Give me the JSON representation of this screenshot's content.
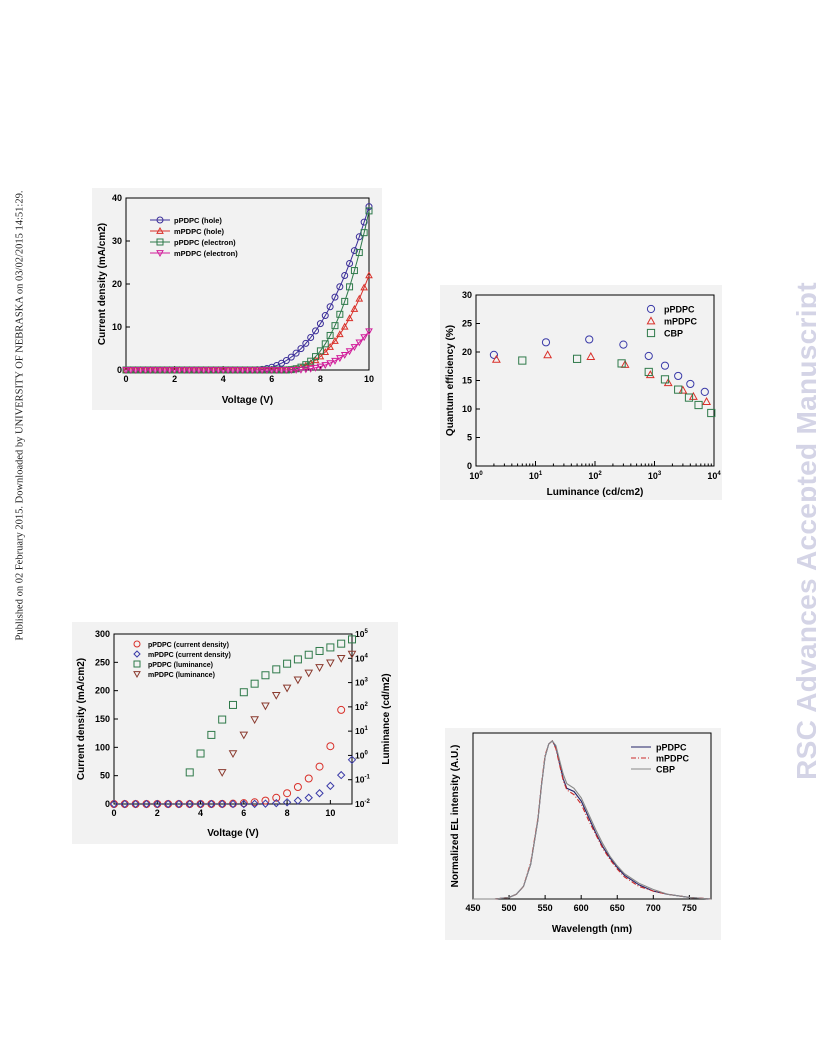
{
  "side_note": "Published on 02 February 2015. Downloaded by UNIVERSITY OF NEBRASKA on 03/02/2015 14:51:29.",
  "watermark": "RSC Advances Accepted Manuscript",
  "colors": {
    "pPDPC_hole": "#3b2e99",
    "mPDPC_hole": "#d9302a",
    "pPDPC_electron": "#2e7a4a",
    "mPDPC_electron": "#d11c9a",
    "eqe_pPDPC": "#3a3aa8",
    "eqe_mPDPC": "#d9302a",
    "eqe_CBP": "#2f7a4a",
    "el_pPDPC": "#222266",
    "el_mPDPC": "#cc2a2a",
    "el_CBP": "#888888"
  },
  "chart_data": [
    {
      "id": "jv_devices",
      "type": "line",
      "title": "",
      "xlabel": "Voltage (V)",
      "ylabel": "Current density (mA/cm2)",
      "xlim": [
        0,
        10
      ],
      "ylim": [
        0,
        40
      ],
      "xticks": [
        "0",
        "2",
        "4",
        "6",
        "8",
        "10"
      ],
      "yticks": [
        "0",
        "10",
        "20",
        "30",
        "40"
      ],
      "legend_position": "top-left",
      "series": [
        {
          "name": "pPDPC  (hole)",
          "marker": "circle",
          "color_key": "pPDPC_hole",
          "onset": 5.1,
          "scale": 38,
          "exp": 2.4
        },
        {
          "name": "mPDPC  (hole)",
          "marker": "triangle-up",
          "color_key": "mPDPC_hole",
          "onset": 6.4,
          "scale": 22,
          "exp": 2.4
        },
        {
          "name": "pPDPC  (electron)",
          "marker": "square",
          "color_key": "pPDPC_electron",
          "onset": 6.5,
          "scale": 37,
          "exp": 2.5
        },
        {
          "name": "mPDPC  (electron)",
          "marker": "triangle-down",
          "color_key": "mPDPC_electron",
          "onset": 6.7,
          "scale": 9,
          "exp": 2.6
        }
      ],
      "x_range_note": "curves sampled from 0 to 10 V",
      "y_max_shown": [
        38,
        22,
        37,
        9
      ]
    },
    {
      "id": "eqe_luminance",
      "type": "scatter",
      "title": "",
      "xlabel": "Luminance (cd/cm2)",
      "ylabel": "Quantum efficiency (%)",
      "xscale": "log",
      "xlim": [
        1,
        10000
      ],
      "ylim": [
        0,
        30
      ],
      "yticks": [
        "0",
        "5",
        "10",
        "15",
        "20",
        "25",
        "30"
      ],
      "legend_position": "top-right",
      "series": [
        {
          "name": "pPDPC",
          "marker": "circle",
          "color_key": "eqe_pPDPC",
          "x": [
            2,
            15,
            80,
            300,
            800,
            1500,
            2500,
            4000,
            7000
          ],
          "y": [
            19.5,
            21.7,
            22.2,
            21.3,
            19.3,
            17.6,
            15.8,
            14.4,
            13.0
          ]
        },
        {
          "name": "mPDPC",
          "marker": "triangle-up",
          "color_key": "eqe_mPDPC",
          "x": [
            2.2,
            16,
            85,
            320,
            850,
            1700,
            3000,
            4500,
            7500
          ],
          "y": [
            18.7,
            19.5,
            19.2,
            17.8,
            16.0,
            14.6,
            13.3,
            12.2,
            11.3
          ]
        },
        {
          "name": "CBP",
          "marker": "square",
          "color_key": "eqe_CBP",
          "x": [
            6,
            50,
            280,
            800,
            1500,
            2500,
            3800,
            5500,
            9000
          ],
          "y": [
            18.5,
            18.8,
            18.0,
            16.5,
            15.2,
            13.4,
            12.0,
            10.7,
            9.3
          ]
        }
      ]
    },
    {
      "id": "jvl_devices",
      "type": "scatter",
      "title": "",
      "xlabel": "Voltage (V)",
      "ylabel": "Current density (mA/cm2)",
      "y2label": "Luminance (cd/m2)",
      "xlim": [
        0,
        11
      ],
      "ylim": [
        0,
        300
      ],
      "y2scale": "log",
      "y2lim": [
        0.01,
        100000
      ],
      "xticks": [
        "0",
        "2",
        "4",
        "6",
        "8",
        "10"
      ],
      "yticks": [
        "0",
        "50",
        "100",
        "150",
        "200",
        "250",
        "300"
      ],
      "legend_position": "top-left",
      "series": [
        {
          "name": "pPDPC  (current density)",
          "marker": "circle",
          "axis": "left",
          "color": "#d9302a",
          "x": [
            0,
            0.5,
            1,
            1.5,
            2,
            2.5,
            3,
            3.5,
            4,
            4.5,
            5,
            5.5,
            6,
            6.5,
            7,
            7.5,
            8,
            8.5,
            9,
            9.5,
            10,
            10.5
          ],
          "y": [
            0,
            0,
            0,
            0,
            0,
            0,
            0,
            0,
            0,
            0,
            0.2,
            0.6,
            1.5,
            3,
            6,
            11,
            19,
            30,
            45,
            66,
            102,
            166
          ]
        },
        {
          "name": "mPDPC  (current density)",
          "marker": "diamond",
          "axis": "left",
          "color": "#3b3ba8",
          "x": [
            0,
            0.5,
            1,
            1.5,
            2,
            2.5,
            3,
            3.5,
            4,
            4.5,
            5,
            5.5,
            6,
            6.5,
            7,
            7.5,
            8,
            8.5,
            9,
            9.5,
            10,
            10.5,
            11
          ],
          "y": [
            0,
            0,
            0,
            0,
            0,
            0,
            0,
            0,
            0,
            0,
            0,
            0,
            0,
            0.2,
            0.6,
            1.5,
            3,
            6,
            11,
            19,
            32,
            51,
            78
          ]
        },
        {
          "name": "pPDPC  (luminance)",
          "marker": "square",
          "axis": "right",
          "color": "#2f7a4a",
          "x": [
            3.5,
            4,
            4.5,
            5,
            5.5,
            6,
            6.5,
            7,
            7.5,
            8,
            8.5,
            9,
            9.5,
            10,
            10.5,
            11
          ],
          "y": [
            0.2,
            1.2,
            7,
            30,
            120,
            400,
            900,
            2000,
            3500,
            6000,
            9000,
            14000,
            20000,
            28000,
            40000,
            60000
          ]
        },
        {
          "name": "mPDPC  (luminance)",
          "marker": "triangle-down",
          "axis": "right",
          "color": "#8a3a2e",
          "x": [
            5,
            5.5,
            6,
            6.5,
            7,
            7.5,
            8,
            8.5,
            9,
            9.5,
            10,
            10.5,
            11
          ],
          "y": [
            0.2,
            1.2,
            7,
            30,
            110,
            300,
            600,
            1300,
            2500,
            4200,
            6500,
            10000,
            15000
          ]
        }
      ]
    },
    {
      "id": "el_spectrum",
      "type": "line",
      "title": "",
      "xlabel": "Wavelength (nm)",
      "ylabel": "Normalized EL intensity (A.U.)",
      "xlim": [
        450,
        780
      ],
      "ylim": [
        0,
        1.05
      ],
      "xticks": [
        "450",
        "500",
        "550",
        "600",
        "650",
        "700",
        "750"
      ],
      "legend_position": "top-right",
      "series": [
        {
          "name": "pPDPC",
          "style": "solid",
          "color_key": "el_pPDPC",
          "x": [
            450,
            480,
            500,
            510,
            520,
            530,
            540,
            545,
            550,
            555,
            560,
            565,
            570,
            575,
            580,
            590,
            600,
            610,
            620,
            630,
            640,
            650,
            660,
            680,
            700,
            720,
            750,
            780
          ],
          "y": [
            0.0,
            0.0,
            0.01,
            0.03,
            0.08,
            0.22,
            0.5,
            0.72,
            0.9,
            0.98,
            1.0,
            0.96,
            0.86,
            0.76,
            0.7,
            0.68,
            0.62,
            0.52,
            0.42,
            0.33,
            0.26,
            0.2,
            0.15,
            0.09,
            0.05,
            0.03,
            0.01,
            0.0
          ]
        },
        {
          "name": "mPDPC",
          "style": "dashed",
          "color_key": "el_mPDPC",
          "x": [
            450,
            480,
            500,
            510,
            520,
            530,
            540,
            545,
            550,
            555,
            560,
            565,
            570,
            575,
            580,
            590,
            600,
            610,
            620,
            630,
            640,
            650,
            660,
            680,
            700,
            720,
            750,
            780
          ],
          "y": [
            0.0,
            0.0,
            0.01,
            0.03,
            0.08,
            0.23,
            0.51,
            0.73,
            0.91,
            0.98,
            1.0,
            0.95,
            0.85,
            0.75,
            0.69,
            0.66,
            0.6,
            0.5,
            0.41,
            0.32,
            0.25,
            0.19,
            0.14,
            0.08,
            0.05,
            0.03,
            0.01,
            0.0
          ]
        },
        {
          "name": "CBP",
          "style": "solid",
          "color_key": "el_CBP",
          "x": [
            450,
            480,
            500,
            510,
            520,
            530,
            540,
            545,
            550,
            555,
            560,
            565,
            570,
            575,
            580,
            590,
            600,
            610,
            620,
            630,
            640,
            650,
            660,
            680,
            700,
            720,
            750,
            780
          ],
          "y": [
            0.0,
            0.0,
            0.01,
            0.03,
            0.08,
            0.22,
            0.5,
            0.72,
            0.9,
            0.98,
            1.0,
            0.97,
            0.88,
            0.79,
            0.73,
            0.7,
            0.64,
            0.54,
            0.44,
            0.35,
            0.27,
            0.21,
            0.16,
            0.1,
            0.06,
            0.03,
            0.01,
            0.0
          ]
        }
      ]
    }
  ]
}
